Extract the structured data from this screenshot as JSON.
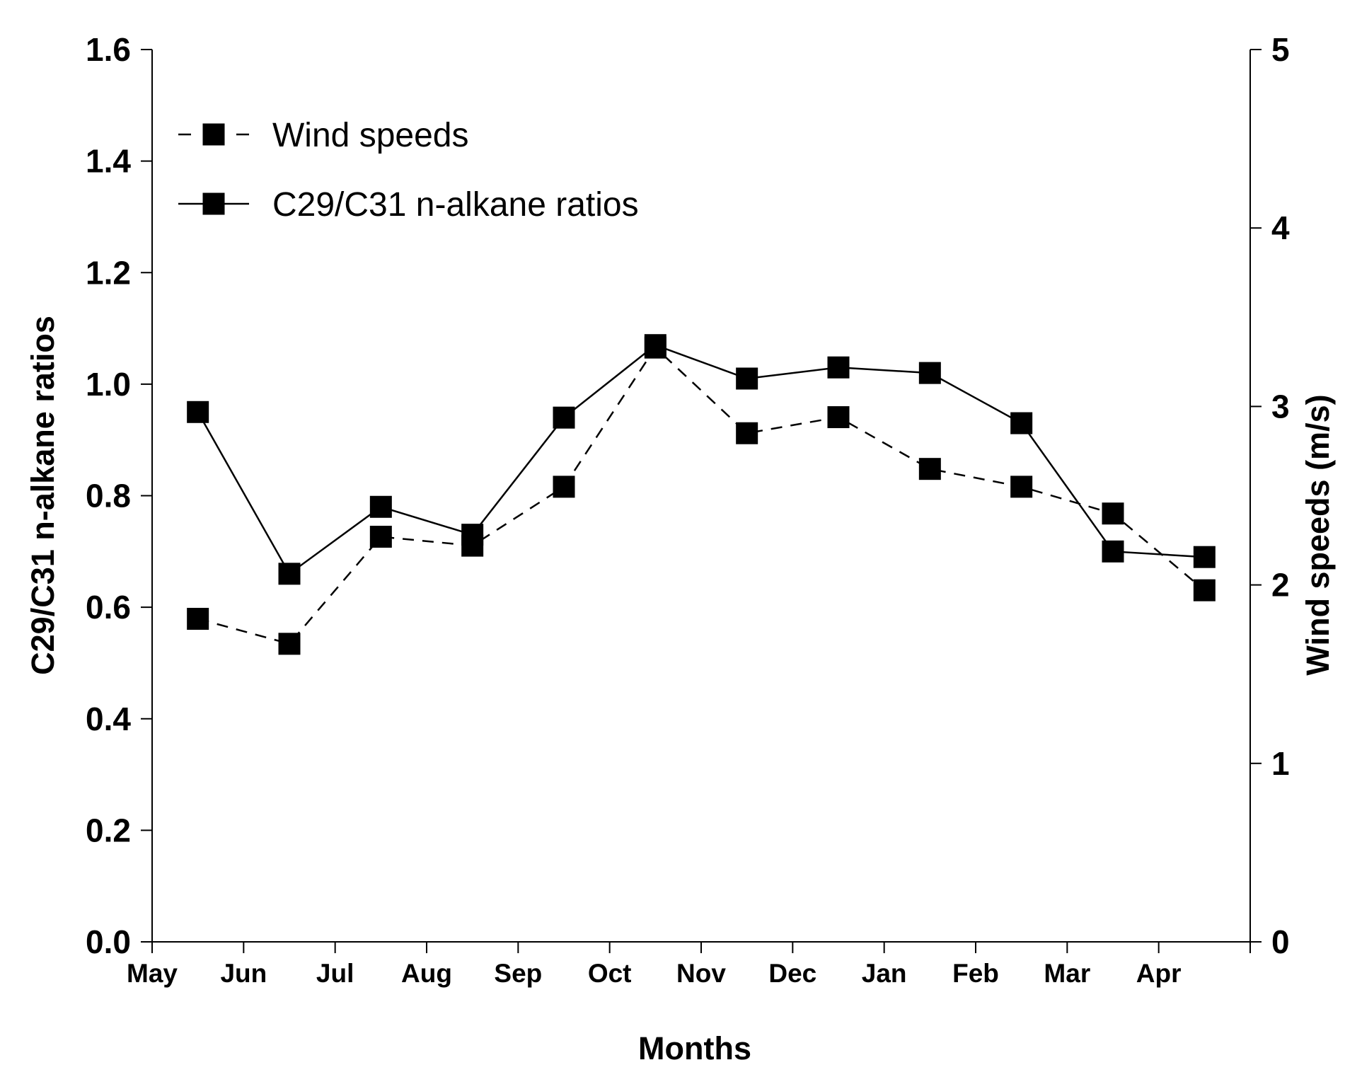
{
  "chart_data": {
    "type": "line",
    "xlabel": "Months",
    "categories": [
      "May",
      "Jun",
      "Jul",
      "Aug",
      "Sep",
      "Oct",
      "Nov",
      "Dec",
      "Jan",
      "Feb",
      "Mar",
      "Apr"
    ],
    "left_axis": {
      "label": "C29/C31 n-alkane ratios",
      "ylim": [
        0,
        1.6
      ],
      "ticks": [
        "0.0",
        "0.2",
        "0.4",
        "0.6",
        "0.8",
        "1.0",
        "1.2",
        "1.4",
        "1.6"
      ]
    },
    "right_axis": {
      "label": "Wind speeds (m/s)",
      "ylim": [
        0,
        5
      ],
      "ticks": [
        "0",
        "1",
        "2",
        "3",
        "4",
        "5"
      ]
    },
    "series": [
      {
        "name": "Wind speeds",
        "axis": "right",
        "line_style": "dashed",
        "values": [
          1.81,
          1.67,
          2.27,
          2.22,
          2.55,
          3.33,
          2.85,
          2.94,
          2.65,
          2.55,
          2.4,
          1.97
        ]
      },
      {
        "name": "C29/C31 n-alkane ratios",
        "axis": "left",
        "line_style": "solid",
        "values": [
          0.95,
          0.66,
          0.78,
          0.73,
          0.94,
          1.07,
          1.01,
          1.03,
          1.02,
          0.93,
          0.7,
          0.69
        ]
      }
    ],
    "legend_position": "top-left",
    "grid": false
  }
}
